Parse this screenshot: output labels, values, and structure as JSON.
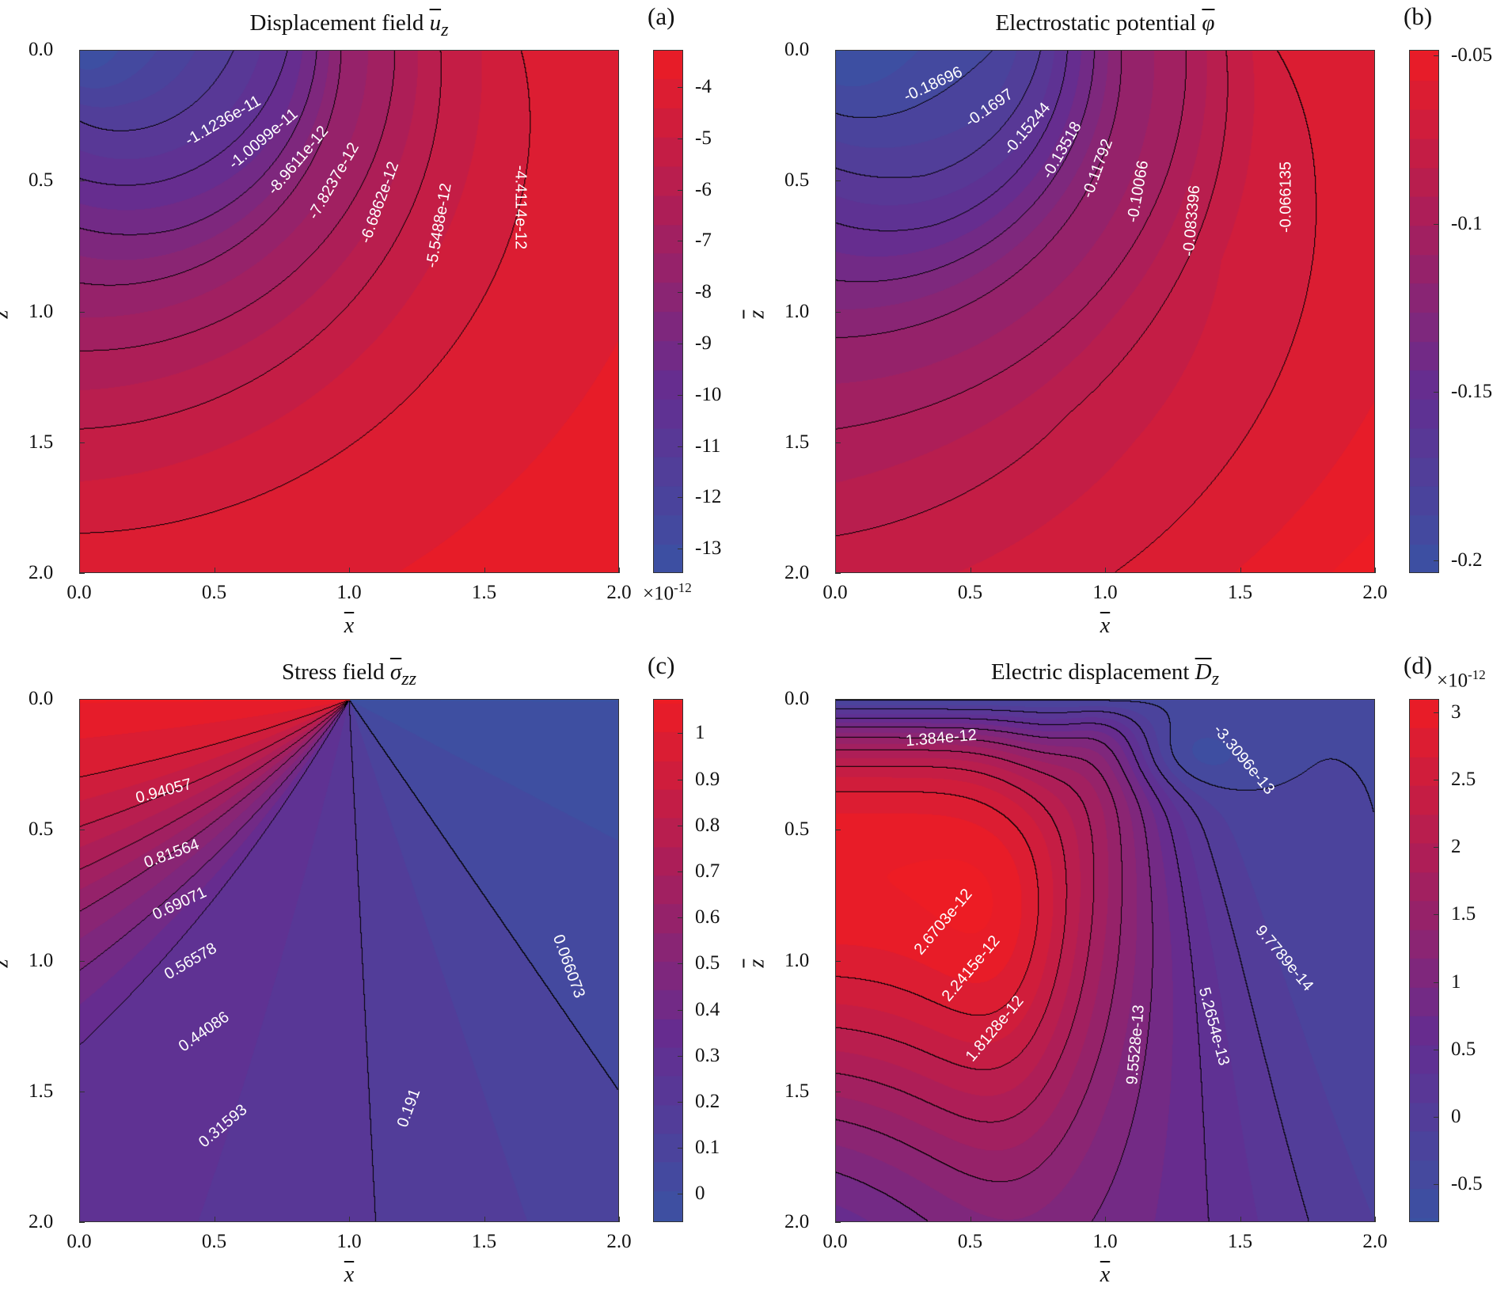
{
  "chart_data": [
    {
      "panel": "(a)",
      "type": "heatmap",
      "subtype": "filled-contour",
      "title": "Displacement field",
      "title_symbol": "u",
      "title_sub": "z",
      "xlabel": "x",
      "ylabel": "z",
      "xlim": [
        0,
        2
      ],
      "ylim": [
        0,
        2
      ],
      "xticks": [
        "0.0",
        "0.5",
        "1.0",
        "1.5",
        "2.0"
      ],
      "yticks": [
        "0.0",
        "0.5",
        "1.0",
        "1.5",
        "2.0"
      ],
      "colorbar": {
        "range": [
          -13.49,
          -3.29
        ],
        "tick_values": [
          -4,
          -5,
          -6,
          -7,
          -8,
          -9,
          -10,
          -11,
          -12,
          -13
        ],
        "ticks": [
          "-4",
          "-5",
          "-6",
          "-7",
          "-8",
          "-9",
          "-10",
          "-11",
          "-12",
          "-13"
        ],
        "multiplier": "×10",
        "exponent": "-12",
        "multiplier_position": "bottom"
      },
      "contour_levels_scaled": [
        -11.236,
        -10.099,
        -8.9611,
        -7.8237,
        -6.6862,
        -5.5488,
        -4.4114
      ],
      "contour_labels": [
        "-1.1236e-11",
        "-1.0099e-11",
        "-8.9611e-12",
        "-7.8237e-12",
        "-6.6862e-12",
        "-5.5488e-12",
        "-4.4114e-12"
      ]
    },
    {
      "panel": "(b)",
      "type": "heatmap",
      "subtype": "filled-contour",
      "title": "Electrostatic potential",
      "title_symbol": "φ",
      "title_sub": "",
      "xlabel": "x",
      "ylabel": "z",
      "xlim": [
        0,
        2
      ],
      "ylim": [
        0,
        2
      ],
      "xticks": [
        "0.0",
        "0.5",
        "1.0",
        "1.5",
        "2.0"
      ],
      "yticks": [
        "0.0",
        "0.5",
        "1.0",
        "1.5",
        "2.0"
      ],
      "colorbar": {
        "range": [
          -0.204,
          -0.0486
        ],
        "tick_values": [
          -0.05,
          -0.1,
          -0.15,
          -0.2
        ],
        "ticks": [
          "-0.05",
          "-0.1",
          "-0.15",
          "-0.2"
        ]
      },
      "contour_levels_scaled": [
        -0.18696,
        -0.1697,
        -0.15244,
        -0.13518,
        -0.11792,
        -0.10066,
        -0.083396,
        -0.066135
      ],
      "contour_labels": [
        "-0.18696",
        "-0.1697",
        "-0.15244",
        "-0.13518",
        "-0.11792",
        "-0.10066",
        "-0.083396",
        "-0.066135"
      ]
    },
    {
      "panel": "(c)",
      "type": "heatmap",
      "subtype": "filled-contour",
      "title": "Stress field",
      "title_symbol": "σ",
      "title_sub": "zz",
      "xlabel": "x",
      "ylabel": "z",
      "xlim": [
        0,
        2
      ],
      "ylim": [
        0,
        2
      ],
      "xticks": [
        "0.0",
        "0.5",
        "1.0",
        "1.5",
        "2.0"
      ],
      "yticks": [
        "0.0",
        "0.5",
        "1.0",
        "1.5",
        "2.0"
      ],
      "colorbar": {
        "range": [
          -0.063,
          1.073
        ],
        "tick_values": [
          1,
          0.9,
          0.8,
          0.7,
          0.6,
          0.5,
          0.4,
          0.3,
          0.2,
          0.1,
          0
        ],
        "ticks": [
          "1",
          "0.9",
          "0.8",
          "0.7",
          "0.6",
          "0.5",
          "0.4",
          "0.3",
          "0.2",
          "0.1",
          "0"
        ]
      },
      "contour_levels_scaled": [
        0.066073,
        0.191,
        0.31593,
        0.44086,
        0.56578,
        0.69071,
        0.81564,
        0.94057
      ],
      "contour_labels": [
        "0.94057",
        "0.81564",
        "0.69071",
        "0.56578",
        "0.44086",
        "0.31593",
        "0.191",
        "0.066073"
      ]
    },
    {
      "panel": "(d)",
      "type": "heatmap",
      "subtype": "filled-contour",
      "title": "Electric displacement",
      "title_symbol": "D",
      "title_sub": "z",
      "xlabel": "x",
      "ylabel": "z",
      "xlim": [
        0,
        2
      ],
      "ylim": [
        0,
        2
      ],
      "xticks": [
        "0.0",
        "0.5",
        "1.0",
        "1.5",
        "2.0"
      ],
      "yticks": [
        "0.0",
        "0.5",
        "1.0",
        "1.5",
        "2.0"
      ],
      "colorbar": {
        "range": [
          -0.786,
          3.093
        ],
        "tick_values": [
          3,
          2.5,
          2,
          1.5,
          1,
          0.5,
          0,
          -0.5
        ],
        "ticks": [
          "3",
          "2.5",
          "2",
          "1.5",
          "1",
          "0.5",
          "0",
          "-0.5"
        ],
        "multiplier": "×10",
        "exponent": "-12",
        "multiplier_position": "top"
      },
      "contour_levels_scaled": [
        -0.33096,
        0.097789,
        0.52654,
        0.95528,
        1.384,
        1.8128,
        2.2415,
        2.6703
      ],
      "contour_labels": [
        "1.384e-12",
        "-3.3096e-13",
        "2.6703e-12",
        "2.2415e-12",
        "1.8128e-12",
        "9.5528e-13",
        "5.2654e-13",
        "9.7789e-14"
      ]
    }
  ],
  "colors": {
    "low": "#3a52a3",
    "mid_low": "#642d91",
    "mid_high": "#aa1e5a",
    "high": "#ed1c24",
    "contour_line": "#000000",
    "contour_label": "#ffffff"
  }
}
